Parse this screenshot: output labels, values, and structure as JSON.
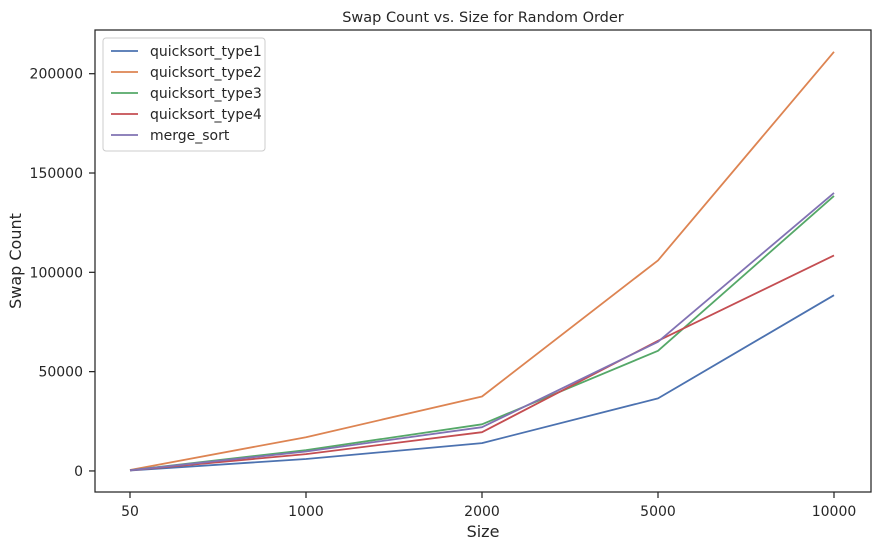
{
  "chart_data": {
    "type": "line",
    "title": "Swap Count vs. Size for Random Order",
    "xlabel": "Size",
    "ylabel": "Swap Count",
    "categories": [
      "50",
      "1000",
      "2000",
      "5000",
      "10000"
    ],
    "yticks": [
      0,
      50000,
      100000,
      150000,
      200000
    ],
    "ytick_labels": [
      "0",
      "50000",
      "100000",
      "150000",
      "200000"
    ],
    "ylim": [
      -10600,
      222000
    ],
    "grid": false,
    "legend_position": "top-left",
    "series": [
      {
        "name": "quicksort_type1",
        "color": "#4c72b0",
        "values": [
          200,
          6000,
          14000,
          36500,
          88500
        ]
      },
      {
        "name": "quicksort_type2",
        "color": "#dd8452",
        "values": [
          500,
          17000,
          37500,
          106000,
          211000
        ]
      },
      {
        "name": "quicksort_type3",
        "color": "#55a868",
        "values": [
          300,
          10500,
          23500,
          60500,
          138500
        ]
      },
      {
        "name": "quicksort_type4",
        "color": "#c44e52",
        "values": [
          300,
          8500,
          19500,
          65500,
          108500
        ]
      },
      {
        "name": "merge_sort",
        "color": "#8172b3",
        "values": [
          300,
          9800,
          22000,
          65000,
          140000
        ]
      }
    ]
  }
}
